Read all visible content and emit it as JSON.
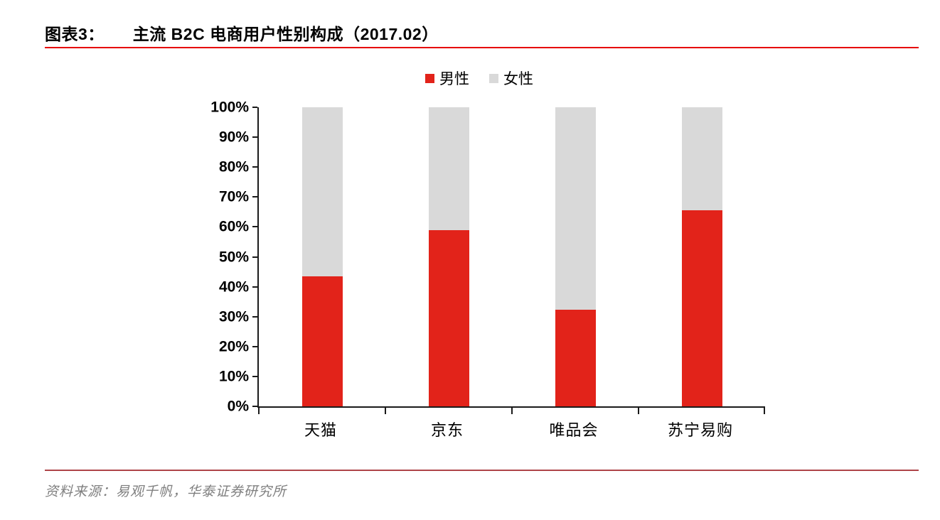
{
  "figure": {
    "label": "图表3：",
    "title": "主流 B2C 电商用户性别构成（2017.02）"
  },
  "chart_data": {
    "type": "bar",
    "stacked": true,
    "title": "主流 B2C 电商用户性别构成（2017.02）",
    "categories": [
      "天猫",
      "京东",
      "唯品会",
      "苏宁易购"
    ],
    "series": [
      {
        "name": "男性",
        "color": "#e2231a",
        "values": [
          43.5,
          59.0,
          32.3,
          65.6
        ]
      },
      {
        "name": "女性",
        "color": "#d9d9d9",
        "values": [
          56.5,
          41.0,
          67.7,
          34.4
        ]
      }
    ],
    "unit": "%",
    "ylim": [
      0,
      100
    ],
    "ytick_step": 10,
    "ytick_suffix": "%",
    "xlabel": "",
    "ylabel": "",
    "grid": false,
    "legend_position": "top-center"
  },
  "footer": {
    "source": "资料来源：易观千帆，华泰证券研究所"
  },
  "colors": {
    "male_bar": "#e2231a",
    "female_bar": "#d9d9d9",
    "title_rule": "#e60000",
    "footer_rule": "#ae4448",
    "axis": "#1a1a1a",
    "footer_text": "#7f7f7f",
    "title_text": "#000000"
  }
}
